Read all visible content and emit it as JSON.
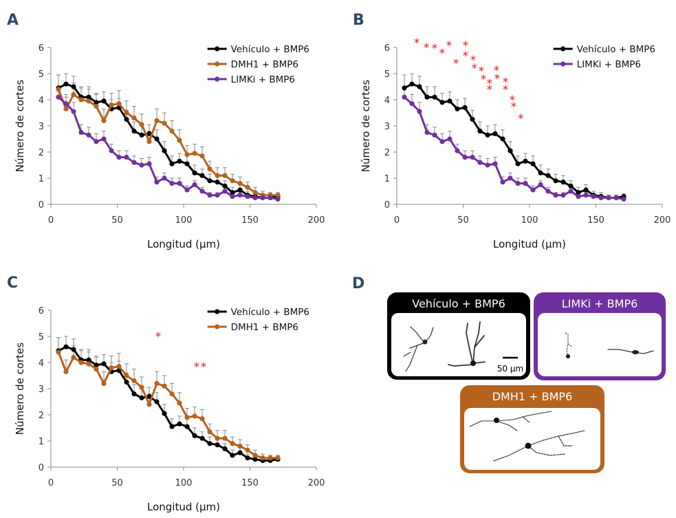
{
  "chart_data": [
    {
      "type": "line",
      "panel": "A",
      "xlabel": "Longitud (µm)",
      "ylabel": "Número de cortes",
      "xlim": [
        0,
        200
      ],
      "xticks": [
        0,
        50,
        100,
        150,
        200
      ],
      "ylim": [
        0,
        6
      ],
      "yticks": [
        0,
        1,
        2,
        3,
        4,
        5,
        6
      ],
      "legend": "upper right",
      "x": [
        5.7,
        11.4,
        17.1,
        22.8,
        28.5,
        34.2,
        39.9,
        45.6,
        51.3,
        57,
        62.7,
        68.4,
        74.1,
        79.8,
        85.5,
        91.2,
        96.9,
        102.6,
        108.3,
        114,
        119.7,
        125.4,
        131.1,
        136.8,
        142.5,
        148.2,
        153.9,
        159.6,
        165.3,
        171
      ],
      "series": [
        {
          "name": "Vehículo + BMP6",
          "color": "#000000",
          "values": [
            4.45,
            4.6,
            4.5,
            4.1,
            4.1,
            3.9,
            3.95,
            3.65,
            3.7,
            3.25,
            2.8,
            2.65,
            2.7,
            2.5,
            2.05,
            1.55,
            1.65,
            1.55,
            1.2,
            1.1,
            0.9,
            0.85,
            0.7,
            0.45,
            0.55,
            0.35,
            0.3,
            0.25,
            0.25,
            0.3
          ],
          "errors": [
            0.5,
            0.4,
            0.4,
            0.4,
            0.4,
            0.35,
            0.35,
            0.35,
            0.35,
            0.35,
            0.35,
            0.35,
            0.35,
            0.35,
            0.35,
            0.3,
            0.3,
            0.3,
            0.3,
            0.25,
            0.25,
            0.25,
            0.2,
            0.2,
            0.2,
            0.15,
            0.15,
            0.1,
            0.1,
            0.1
          ]
        },
        {
          "name": "DMH1 + BMP6",
          "color": "#b5631e",
          "values": [
            4.4,
            3.65,
            4.2,
            4.0,
            3.95,
            3.75,
            3.2,
            3.8,
            3.85,
            3.5,
            3.3,
            3.05,
            2.4,
            3.2,
            3.1,
            2.8,
            2.45,
            1.9,
            1.95,
            1.85,
            1.35,
            1.1,
            1.1,
            0.9,
            0.8,
            0.65,
            0.45,
            0.35,
            0.35,
            0.35
          ],
          "errors": [
            0.55,
            0.45,
            0.45,
            0.45,
            0.45,
            0.45,
            0.45,
            0.45,
            0.5,
            0.45,
            0.45,
            0.4,
            0.4,
            0.45,
            0.4,
            0.4,
            0.4,
            0.35,
            0.35,
            0.35,
            0.3,
            0.3,
            0.3,
            0.25,
            0.25,
            0.2,
            0.2,
            0.15,
            0.1,
            0.1
          ]
        },
        {
          "name": "LIMKi + BMP6",
          "color": "#7030a0",
          "values": [
            4.1,
            3.85,
            3.55,
            2.75,
            2.65,
            2.4,
            2.5,
            2.05,
            1.8,
            1.8,
            1.6,
            1.5,
            1.55,
            0.85,
            1.0,
            0.8,
            0.8,
            0.55,
            0.75,
            0.5,
            0.35,
            0.35,
            0.5,
            0.3,
            0.35,
            0.3,
            0.25,
            0.25,
            0.25,
            0.2
          ],
          "errors": [
            0.4,
            0.35,
            0.35,
            0.3,
            0.3,
            0.3,
            0.3,
            0.25,
            0.25,
            0.25,
            0.25,
            0.25,
            0.25,
            0.2,
            0.2,
            0.2,
            0.2,
            0.15,
            0.15,
            0.15,
            0.1,
            0.1,
            0.15,
            0.1,
            0.1,
            0.1,
            0.1,
            0.1,
            0.1,
            0.1
          ]
        }
      ]
    },
    {
      "type": "line",
      "panel": "B",
      "xlabel": "Longitud (µm)",
      "ylabel": "Número de cortes",
      "xlim": [
        0,
        200
      ],
      "xticks": [
        0,
        50,
        100,
        150,
        200
      ],
      "ylim": [
        0,
        6
      ],
      "yticks": [
        0,
        1,
        2,
        3,
        4,
        5,
        6
      ],
      "legend": "upper right",
      "x": [
        5.7,
        11.4,
        17.1,
        22.8,
        28.5,
        34.2,
        39.9,
        45.6,
        51.3,
        57,
        62.7,
        68.4,
        74.1,
        79.8,
        85.5,
        91.2,
        96.9,
        102.6,
        108.3,
        114,
        119.7,
        125.4,
        131.1,
        136.8,
        142.5,
        148.2,
        153.9,
        159.6,
        165.3,
        171
      ],
      "series": [
        {
          "name": "Vehículo + BMP6",
          "color": "#000000",
          "values": [
            4.45,
            4.6,
            4.5,
            4.1,
            4.1,
            3.9,
            3.95,
            3.65,
            3.7,
            3.25,
            2.8,
            2.65,
            2.7,
            2.5,
            2.05,
            1.55,
            1.65,
            1.55,
            1.2,
            1.1,
            0.9,
            0.85,
            0.7,
            0.45,
            0.55,
            0.35,
            0.3,
            0.25,
            0.25,
            0.3
          ],
          "errors": [
            0.5,
            0.4,
            0.4,
            0.4,
            0.4,
            0.35,
            0.35,
            0.35,
            0.35,
            0.35,
            0.35,
            0.35,
            0.35,
            0.35,
            0.35,
            0.3,
            0.3,
            0.3,
            0.3,
            0.25,
            0.25,
            0.25,
            0.2,
            0.2,
            0.2,
            0.15,
            0.15,
            0.1,
            0.1,
            0.1
          ]
        },
        {
          "name": "LIMKi + BMP6",
          "color": "#7030a0",
          "values": [
            4.1,
            3.85,
            3.55,
            2.75,
            2.65,
            2.4,
            2.5,
            2.05,
            1.8,
            1.8,
            1.6,
            1.5,
            1.55,
            0.85,
            1.0,
            0.8,
            0.8,
            0.55,
            0.75,
            0.5,
            0.35,
            0.35,
            0.5,
            0.3,
            0.35,
            0.3,
            0.25,
            0.25,
            0.25,
            0.2
          ],
          "errors": [
            0.4,
            0.35,
            0.35,
            0.3,
            0.3,
            0.3,
            0.3,
            0.25,
            0.25,
            0.25,
            0.25,
            0.25,
            0.25,
            0.2,
            0.2,
            0.2,
            0.2,
            0.15,
            0.15,
            0.15,
            0.1,
            0.1,
            0.15,
            0.1,
            0.1,
            0.1,
            0.1,
            0.1,
            0.1,
            0.1
          ]
        }
      ],
      "annotations": [
        "*",
        "*",
        "*",
        "*",
        "*",
        "*",
        "*",
        "*",
        "*",
        "*",
        "*",
        "*",
        "*",
        "*",
        "*",
        "*",
        "*",
        "*",
        "*",
        "*",
        "*"
      ]
    },
    {
      "type": "line",
      "panel": "C",
      "xlabel": "Longitud (µm)",
      "ylabel": "Número de cortes",
      "xlim": [
        0,
        200
      ],
      "xticks": [
        0,
        50,
        100,
        150,
        200
      ],
      "ylim": [
        0,
        6
      ],
      "yticks": [
        0,
        1,
        2,
        3,
        4,
        5,
        6
      ],
      "legend": "upper right",
      "x": [
        5.7,
        11.4,
        17.1,
        22.8,
        28.5,
        34.2,
        39.9,
        45.6,
        51.3,
        57,
        62.7,
        68.4,
        74.1,
        79.8,
        85.5,
        91.2,
        96.9,
        102.6,
        108.3,
        114,
        119.7,
        125.4,
        131.1,
        136.8,
        142.5,
        148.2,
        153.9,
        159.6,
        165.3,
        171
      ],
      "series": [
        {
          "name": "Vehículo + BMP6",
          "color": "#000000",
          "values": [
            4.45,
            4.6,
            4.5,
            4.1,
            4.1,
            3.9,
            3.95,
            3.65,
            3.7,
            3.25,
            2.8,
            2.65,
            2.7,
            2.5,
            2.05,
            1.55,
            1.65,
            1.55,
            1.2,
            1.1,
            0.9,
            0.85,
            0.7,
            0.45,
            0.55,
            0.35,
            0.3,
            0.25,
            0.25,
            0.3
          ],
          "errors": [
            0.5,
            0.4,
            0.4,
            0.4,
            0.4,
            0.35,
            0.35,
            0.35,
            0.35,
            0.35,
            0.35,
            0.35,
            0.35,
            0.35,
            0.35,
            0.3,
            0.3,
            0.3,
            0.3,
            0.25,
            0.25,
            0.25,
            0.2,
            0.2,
            0.2,
            0.15,
            0.15,
            0.1,
            0.1,
            0.1
          ]
        },
        {
          "name": "DMH1 + BMP6",
          "color": "#b5631e",
          "values": [
            4.4,
            3.65,
            4.2,
            4.0,
            3.95,
            3.75,
            3.2,
            3.8,
            3.85,
            3.5,
            3.3,
            3.05,
            2.4,
            3.2,
            3.1,
            2.8,
            2.45,
            1.9,
            1.95,
            1.85,
            1.35,
            1.1,
            1.1,
            0.9,
            0.8,
            0.65,
            0.45,
            0.35,
            0.35,
            0.35
          ],
          "errors": [
            0.55,
            0.45,
            0.45,
            0.45,
            0.45,
            0.45,
            0.45,
            0.45,
            0.5,
            0.45,
            0.45,
            0.4,
            0.4,
            0.45,
            0.4,
            0.4,
            0.4,
            0.35,
            0.35,
            0.35,
            0.3,
            0.3,
            0.3,
            0.25,
            0.25,
            0.2,
            0.2,
            0.15,
            0.1,
            0.1
          ]
        }
      ],
      "annotations": [
        "*",
        "*",
        "*"
      ]
    }
  ],
  "images": {
    "panel": "D",
    "labels": [
      "Vehículo + BMP6",
      "LIMKi + BMP6",
      "DMH1 + BMP6"
    ],
    "scale_bar": "50 µm"
  }
}
